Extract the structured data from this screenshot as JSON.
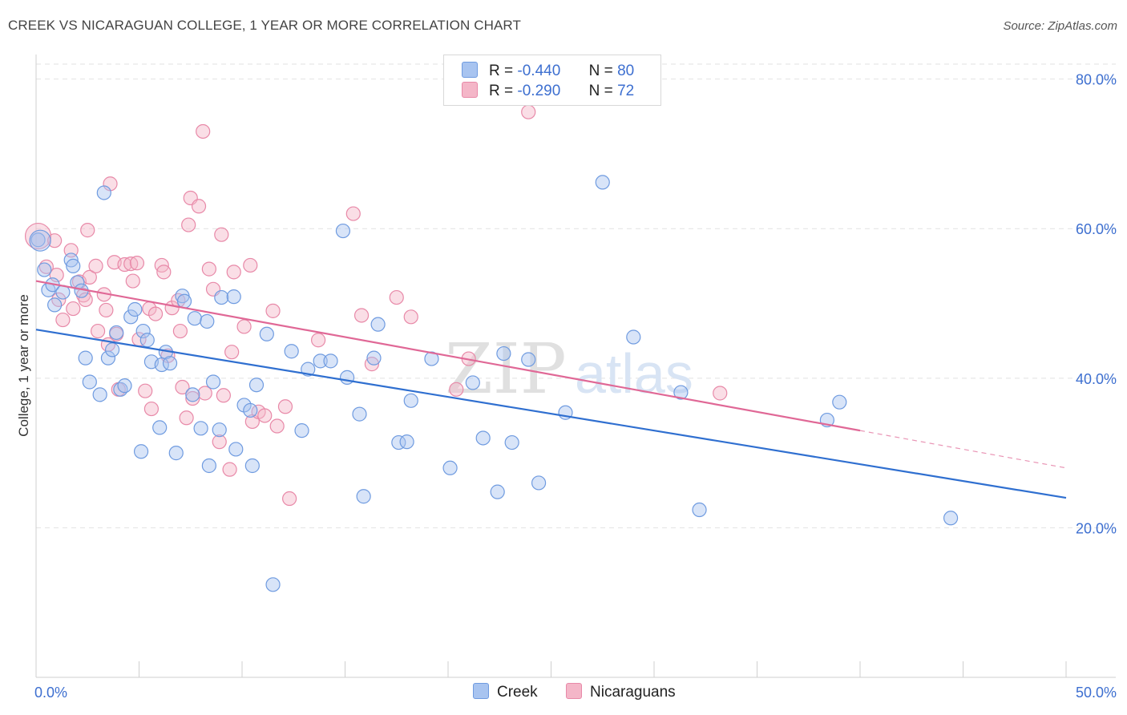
{
  "title": "CREEK VS NICARAGUAN COLLEGE, 1 YEAR OR MORE CORRELATION CHART",
  "source": "Source: ZipAtlas.com",
  "watermark": {
    "zip": "ZIP",
    "atlas": "atlas"
  },
  "legend": {
    "r_label": "R =",
    "n_label": "N =",
    "rows": [
      {
        "r": "-0.440",
        "n": "80",
        "color": "#a8c4f0"
      },
      {
        "r": "-0.290",
        "n": "72",
        "color": "#f4b6c8"
      }
    ]
  },
  "bottom_legend": [
    "Creek",
    "Nicaraguans"
  ],
  "colors": {
    "creek_fill": "#a8c4f0",
    "creek_stroke": "#6f9be0",
    "creek_line": "#2f6fd0",
    "nic_fill": "#f4b6c8",
    "nic_stroke": "#e889a8",
    "nic_line": "#e06896",
    "tick_label": "#3d6fd0",
    "grid": "#e2e2e2"
  },
  "chart_data": {
    "type": "scatter",
    "title": "CREEK VS NICARAGUAN COLLEGE, 1 YEAR OR MORE CORRELATION CHART",
    "ylabel": "College, 1 year or more",
    "xlabel": "",
    "xlim": [
      0,
      50
    ],
    "ylim": [
      0,
      82
    ],
    "x_tick_labels": [
      "0.0%",
      "50.0%"
    ],
    "y_ticks": [
      20,
      40,
      60,
      80
    ],
    "y_tick_labels": [
      "20.0%",
      "40.0%",
      "60.0%",
      "80.0%"
    ],
    "grid": "horizontal dashed",
    "series": [
      {
        "name": "Creek",
        "r": -0.44,
        "n": 80,
        "trend": {
          "x": [
            0,
            50
          ],
          "y": [
            46.5,
            24.0
          ]
        },
        "points": [
          [
            0.1,
            58.5
          ],
          [
            0.4,
            54.5
          ],
          [
            0.6,
            51.8
          ],
          [
            0.8,
            52.5
          ],
          [
            0.9,
            49.8
          ],
          [
            1.3,
            51.5
          ],
          [
            1.7,
            55.8
          ],
          [
            1.8,
            55.0
          ],
          [
            2.0,
            52.8
          ],
          [
            2.2,
            51.7
          ],
          [
            2.4,
            42.7
          ],
          [
            2.6,
            39.5
          ],
          [
            3.1,
            37.8
          ],
          [
            3.3,
            64.8
          ],
          [
            3.5,
            42.7
          ],
          [
            3.7,
            43.8
          ],
          [
            3.9,
            46.1
          ],
          [
            4.1,
            38.5
          ],
          [
            4.3,
            39.0
          ],
          [
            4.6,
            48.2
          ],
          [
            4.8,
            49.2
          ],
          [
            5.1,
            30.2
          ],
          [
            5.2,
            46.3
          ],
          [
            5.4,
            45.1
          ],
          [
            5.6,
            42.2
          ],
          [
            6.0,
            33.4
          ],
          [
            6.1,
            41.8
          ],
          [
            6.3,
            43.5
          ],
          [
            6.5,
            42.0
          ],
          [
            6.8,
            30.0
          ],
          [
            7.1,
            51.0
          ],
          [
            7.2,
            50.3
          ],
          [
            7.6,
            37.8
          ],
          [
            7.7,
            48.0
          ],
          [
            8.0,
            33.3
          ],
          [
            8.3,
            47.6
          ],
          [
            8.4,
            28.3
          ],
          [
            8.6,
            39.5
          ],
          [
            8.9,
            33.1
          ],
          [
            9.0,
            50.8
          ],
          [
            9.6,
            50.9
          ],
          [
            9.7,
            30.5
          ],
          [
            10.1,
            36.4
          ],
          [
            10.4,
            35.7
          ],
          [
            10.5,
            28.3
          ],
          [
            10.7,
            39.1
          ],
          [
            11.2,
            45.9
          ],
          [
            11.5,
            12.4
          ],
          [
            12.4,
            43.6
          ],
          [
            12.9,
            33.0
          ],
          [
            13.2,
            41.2
          ],
          [
            13.8,
            42.3
          ],
          [
            14.3,
            42.3
          ],
          [
            14.9,
            59.7
          ],
          [
            15.1,
            40.1
          ],
          [
            15.7,
            35.2
          ],
          [
            15.9,
            24.2
          ],
          [
            16.4,
            42.7
          ],
          [
            16.6,
            47.2
          ],
          [
            17.6,
            31.4
          ],
          [
            18.0,
            31.5
          ],
          [
            18.2,
            37.0
          ],
          [
            19.2,
            42.6
          ],
          [
            20.1,
            28.0
          ],
          [
            21.2,
            39.4
          ],
          [
            21.7,
            32.0
          ],
          [
            22.4,
            24.8
          ],
          [
            22.7,
            43.3
          ],
          [
            23.1,
            31.4
          ],
          [
            23.9,
            42.5
          ],
          [
            24.4,
            26.0
          ],
          [
            25.7,
            35.4
          ],
          [
            27.5,
            66.2
          ],
          [
            29.0,
            45.5
          ],
          [
            31.3,
            38.1
          ],
          [
            32.2,
            22.4
          ],
          [
            38.4,
            34.4
          ],
          [
            39.0,
            36.8
          ],
          [
            44.4,
            21.3
          ],
          [
            0.2,
            58.4
          ]
        ]
      },
      {
        "name": "Nicaraguans",
        "r": -0.29,
        "n": 72,
        "trend": {
          "x": [
            0,
            40
          ],
          "y": [
            53.0,
            33.0
          ]
        },
        "trend_extension": {
          "x": [
            40,
            50
          ],
          "y": [
            33.0,
            28.0
          ]
        },
        "points": [
          [
            0.1,
            59.0
          ],
          [
            0.5,
            54.9
          ],
          [
            0.9,
            58.4
          ],
          [
            1.0,
            53.8
          ],
          [
            1.1,
            50.5
          ],
          [
            1.3,
            47.8
          ],
          [
            1.7,
            57.1
          ],
          [
            1.8,
            49.3
          ],
          [
            2.1,
            52.9
          ],
          [
            2.3,
            51.1
          ],
          [
            2.4,
            50.5
          ],
          [
            2.5,
            59.8
          ],
          [
            2.6,
            53.5
          ],
          [
            2.9,
            55.0
          ],
          [
            3.0,
            46.3
          ],
          [
            3.3,
            51.2
          ],
          [
            3.4,
            49.1
          ],
          [
            3.5,
            44.5
          ],
          [
            3.6,
            66.0
          ],
          [
            3.8,
            55.5
          ],
          [
            3.9,
            45.9
          ],
          [
            4.0,
            38.5
          ],
          [
            4.3,
            55.2
          ],
          [
            4.6,
            55.3
          ],
          [
            4.7,
            53.0
          ],
          [
            4.9,
            55.4
          ],
          [
            5.0,
            45.2
          ],
          [
            5.3,
            38.3
          ],
          [
            5.5,
            49.3
          ],
          [
            5.6,
            35.9
          ],
          [
            5.8,
            48.6
          ],
          [
            6.1,
            55.1
          ],
          [
            6.2,
            54.2
          ],
          [
            6.4,
            43.0
          ],
          [
            6.6,
            49.4
          ],
          [
            6.9,
            50.4
          ],
          [
            7.0,
            46.3
          ],
          [
            7.1,
            38.8
          ],
          [
            7.3,
            34.7
          ],
          [
            7.4,
            60.5
          ],
          [
            7.5,
            64.1
          ],
          [
            7.6,
            37.3
          ],
          [
            7.9,
            63.0
          ],
          [
            8.1,
            73.0
          ],
          [
            8.2,
            38.0
          ],
          [
            8.4,
            54.6
          ],
          [
            8.6,
            51.9
          ],
          [
            8.9,
            31.5
          ],
          [
            9.0,
            59.2
          ],
          [
            9.1,
            37.7
          ],
          [
            9.4,
            27.8
          ],
          [
            9.5,
            43.5
          ],
          [
            9.6,
            54.2
          ],
          [
            10.1,
            46.9
          ],
          [
            10.4,
            55.1
          ],
          [
            10.5,
            34.2
          ],
          [
            10.8,
            35.5
          ],
          [
            11.1,
            35.0
          ],
          [
            11.5,
            49.0
          ],
          [
            11.7,
            33.6
          ],
          [
            12.1,
            36.2
          ],
          [
            12.3,
            23.9
          ],
          [
            13.7,
            45.1
          ],
          [
            15.4,
            62.0
          ],
          [
            15.8,
            48.4
          ],
          [
            16.3,
            41.9
          ],
          [
            17.5,
            50.8
          ],
          [
            18.2,
            48.2
          ],
          [
            20.4,
            38.5
          ],
          [
            21.0,
            42.6
          ],
          [
            23.9,
            75.6
          ],
          [
            33.2,
            38.0
          ]
        ]
      }
    ]
  }
}
